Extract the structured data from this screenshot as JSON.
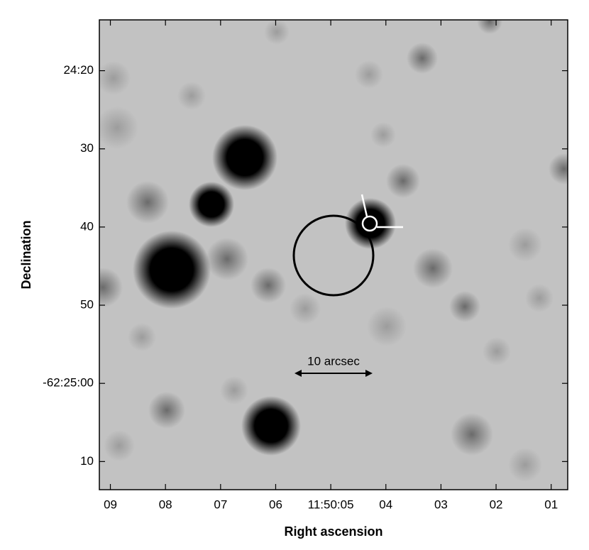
{
  "chart_data": {
    "type": "image",
    "xlabel": "Right ascension",
    "ylabel": "Declination",
    "xlim": [
      9.2,
      0.7
    ],
    "ylim": [
      13.5,
      73.6
    ],
    "xticks": [
      {
        "value": 9,
        "label": "09"
      },
      {
        "value": 8,
        "label": "08"
      },
      {
        "value": 7,
        "label": "07"
      },
      {
        "value": 6,
        "label": "06"
      },
      {
        "value": 5,
        "label": "11:50:05"
      },
      {
        "value": 4,
        "label": "04"
      },
      {
        "value": 3,
        "label": "03"
      },
      {
        "value": 2,
        "label": "02"
      },
      {
        "value": 1,
        "label": "01"
      }
    ],
    "yticks": [
      {
        "value": 20,
        "label": "24:20"
      },
      30,
      40,
      50,
      {
        "value": 60,
        "label": "-62:25:00"
      },
      {
        "value": 70,
        "label": "10"
      }
    ],
    "annotation": "10 arcsec"
  }
}
